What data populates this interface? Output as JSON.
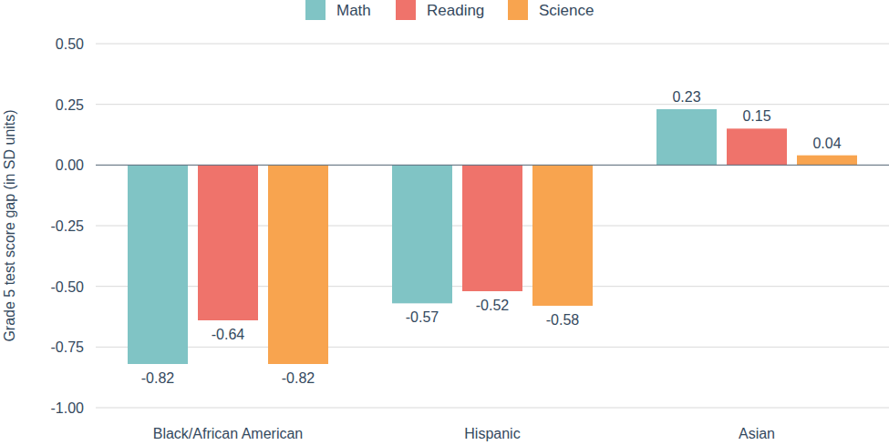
{
  "chart_data": {
    "type": "bar",
    "y_label": "Grade 5 test score gap (in SD units)",
    "categories": [
      "Black/African American",
      "Hispanic",
      "Asian"
    ],
    "series": [
      {
        "name": "Math",
        "color": "#80c4c5",
        "values": [
          -0.82,
          -0.57,
          0.23
        ]
      },
      {
        "name": "Reading",
        "color": "#ef736b",
        "values": [
          -0.64,
          -0.52,
          0.15
        ]
      },
      {
        "name": "Science",
        "color": "#f8a44f",
        "values": [
          -0.82,
          -0.58,
          0.04
        ]
      }
    ],
    "ylim": [
      -1,
      0.5
    ],
    "yticks": [
      {
        "value": -1,
        "label": "-1.00"
      },
      -0.75,
      {
        "value": -0.5,
        "label": "-0.50"
      },
      -0.25,
      {
        "value": 0,
        "label": "0.00"
      },
      0.25,
      {
        "value": 0.5,
        "label": "0.50"
      }
    ],
    "grid": true,
    "legend": "top",
    "data_labels": true
  }
}
